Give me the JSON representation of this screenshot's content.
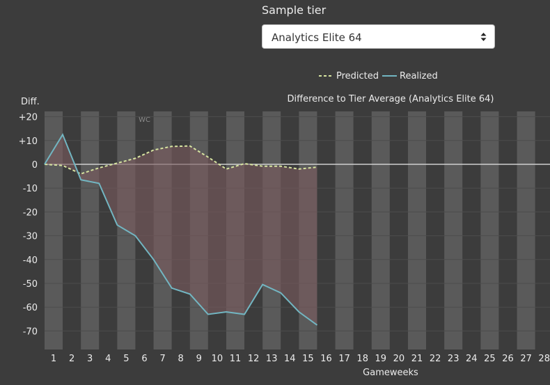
{
  "controls": {
    "tier_label": "Sample tier",
    "tier_selected": "Analytics Elite 64"
  },
  "chart_data": {
    "type": "line",
    "title": "Difference to Tier Average (Analytics Elite 64)",
    "xlabel": "Gameweeks",
    "ylabel": "Diff.",
    "x_ticks": [
      "1",
      "2",
      "3",
      "4",
      "5",
      "6",
      "7",
      "8",
      "9",
      "10",
      "11",
      "12",
      "13",
      "14",
      "15",
      "16",
      "17",
      "18",
      "19",
      "20",
      "21",
      "22",
      "23",
      "24",
      "25",
      "26",
      "27",
      "28"
    ],
    "y_ticks": [
      "+20",
      "+10",
      "0",
      "-10",
      "-20",
      "-30",
      "-40",
      "-50",
      "-60",
      "-70"
    ],
    "y_tick_values": [
      20,
      10,
      0,
      -10,
      -20,
      -30,
      -40,
      -50,
      -60,
      -70
    ],
    "xlim": [
      0.5,
      28.3
    ],
    "ylim": [
      -78,
      22
    ],
    "legend_position": "top-center",
    "grid": true,
    "series": [
      {
        "name": "Predicted",
        "style": "dashed",
        "color": "#d6e4a0",
        "x": [
          0.5,
          1.5,
          2.5,
          3.5,
          4.5,
          5.5,
          6.5,
          7.5,
          8.5,
          9.5,
          10.5,
          11.5,
          12.5,
          13.5,
          14.5,
          15.5
        ],
        "values": [
          0,
          -0.5,
          -4,
          -1.5,
          0.5,
          2.5,
          6,
          7.5,
          7.7,
          3,
          -2,
          0.3,
          -0.8,
          -0.8,
          -2,
          -1.2
        ]
      },
      {
        "name": "Realized",
        "style": "solid",
        "color": "#72b6c2",
        "x": [
          0.5,
          1.5,
          2.5,
          3.5,
          4.5,
          5.5,
          6.5,
          7.5,
          8.5,
          9.5,
          10.5,
          11.5,
          12.5,
          13.5,
          14.5,
          15.5
        ],
        "values": [
          0,
          12.5,
          -6.5,
          -8,
          -25.5,
          -30,
          -40,
          -52,
          -54.5,
          -63,
          -62,
          -63,
          -50.5,
          -54,
          -62,
          -67.5
        ]
      }
    ],
    "annotations": [
      {
        "text": "WC",
        "x": 6,
        "y": 19
      }
    ],
    "highlighted_columns": [
      1,
      3,
      5,
      7,
      9,
      11,
      13,
      15,
      17,
      19,
      21,
      23,
      25,
      27
    ],
    "colors": {
      "background": "#3c3c3c",
      "column_band": "#5a5a5a",
      "area_fill": "#7a5a5e",
      "zero_line": "#cfcfcf",
      "grid_line": "#4c4c4c",
      "text": "#ececec"
    }
  }
}
